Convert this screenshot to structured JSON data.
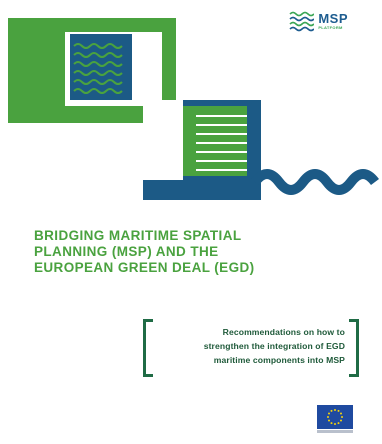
{
  "logo": {
    "name": "MSP",
    "subtitle": "PLATFORM",
    "icon": "msp-waves-logo-icon"
  },
  "title_lines": [
    "BRIDGING MARITIME SPATIAL",
    "PLANNING (MSP) AND THE",
    "EUROPEAN GREEN DEAL (EGD)"
  ],
  "subtitle_lines": [
    "Recommendations on how to",
    "strengthen the integration of EGD",
    "maritime components into MSP"
  ],
  "colors": {
    "green": "#4aa23f",
    "navy": "#1c5a86",
    "dark_green": "#1f6b45",
    "eu_blue": "#1f4aa0",
    "eu_star": "#f5d20a"
  },
  "emblem": "eu-flag-icon"
}
